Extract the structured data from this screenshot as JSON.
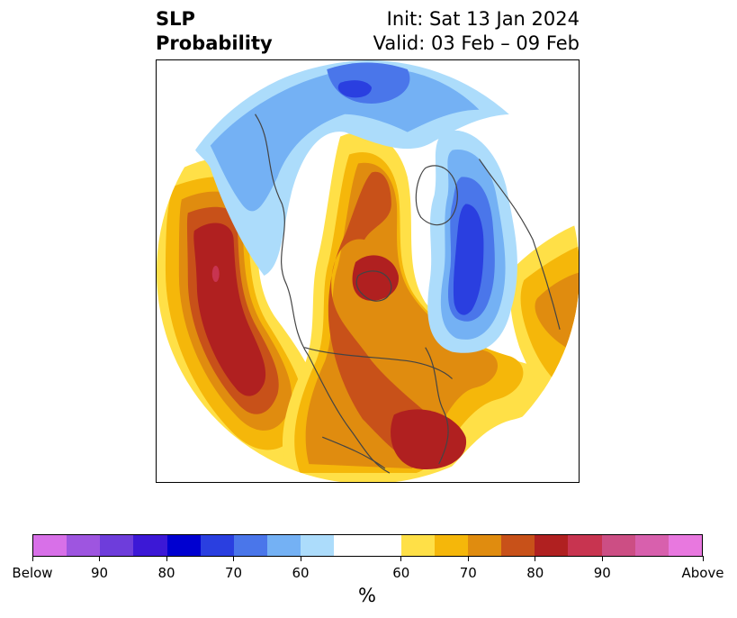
{
  "title": {
    "left": [
      "SLP",
      "Probability"
    ],
    "right": [
      "Init: Sat 13 Jan 2024",
      "Valid: 03 Feb – 09 Feb"
    ]
  },
  "map": {
    "projection": "polar-stereographic-north-america",
    "features": [
      "coastlines",
      "country-borders",
      "us-state-borders",
      "canadian-province-borders"
    ]
  },
  "colorbar": {
    "unit_label": "%",
    "colors": [
      "#d870e8",
      "#9e55e0",
      "#6e3ddb",
      "#3c18d6",
      "#0000d0",
      "#2a3fe0",
      "#4a76ea",
      "#74b1f4",
      "#acdcfb",
      "#ffffff",
      "#ffe047",
      "#f5b70a",
      "#e08c0f",
      "#c85119",
      "#b02020",
      "#c83450",
      "#cc4e84",
      "#d860ad",
      "#e878df"
    ],
    "tick_labels": [
      "Below",
      "90",
      "80",
      "70",
      "60",
      "60",
      "70",
      "80",
      "90",
      "Above"
    ]
  },
  "colors": {
    "below_strong": "#2a3fe0",
    "below_mid": "#74b1f4",
    "below_weak": "#acdcfb",
    "above_weak": "#ffe047",
    "above_mid": "#f5b70a",
    "above_strong": "#b02020",
    "borders": "#444444"
  }
}
